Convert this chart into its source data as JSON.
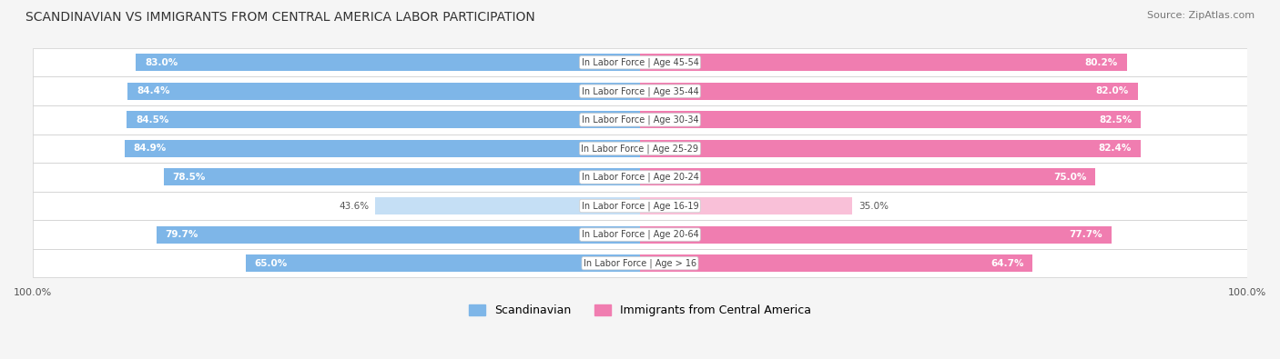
{
  "title": "SCANDINAVIAN VS IMMIGRANTS FROM CENTRAL AMERICA LABOR PARTICIPATION",
  "source": "Source: ZipAtlas.com",
  "categories": [
    "In Labor Force | Age > 16",
    "In Labor Force | Age 20-64",
    "In Labor Force | Age 16-19",
    "In Labor Force | Age 20-24",
    "In Labor Force | Age 25-29",
    "In Labor Force | Age 30-34",
    "In Labor Force | Age 35-44",
    "In Labor Force | Age 45-54"
  ],
  "scandinavian": [
    65.0,
    79.7,
    43.6,
    78.5,
    84.9,
    84.5,
    84.4,
    83.0
  ],
  "immigrants": [
    64.7,
    77.7,
    35.0,
    75.0,
    82.4,
    82.5,
    82.0,
    80.2
  ],
  "scand_color": "#7EB6E8",
  "immig_color": "#F07DB0",
  "scand_color_light": "#C5DFF5",
  "immig_color_light": "#F9C0D8",
  "bg_color": "#F5F5F5",
  "row_bg": "#EFEFEF",
  "label_color": "#333333",
  "title_color": "#333333",
  "max_value": 100.0,
  "bar_height": 0.6,
  "legend_label_scand": "Scandinavian",
  "legend_label_immig": "Immigrants from Central America"
}
